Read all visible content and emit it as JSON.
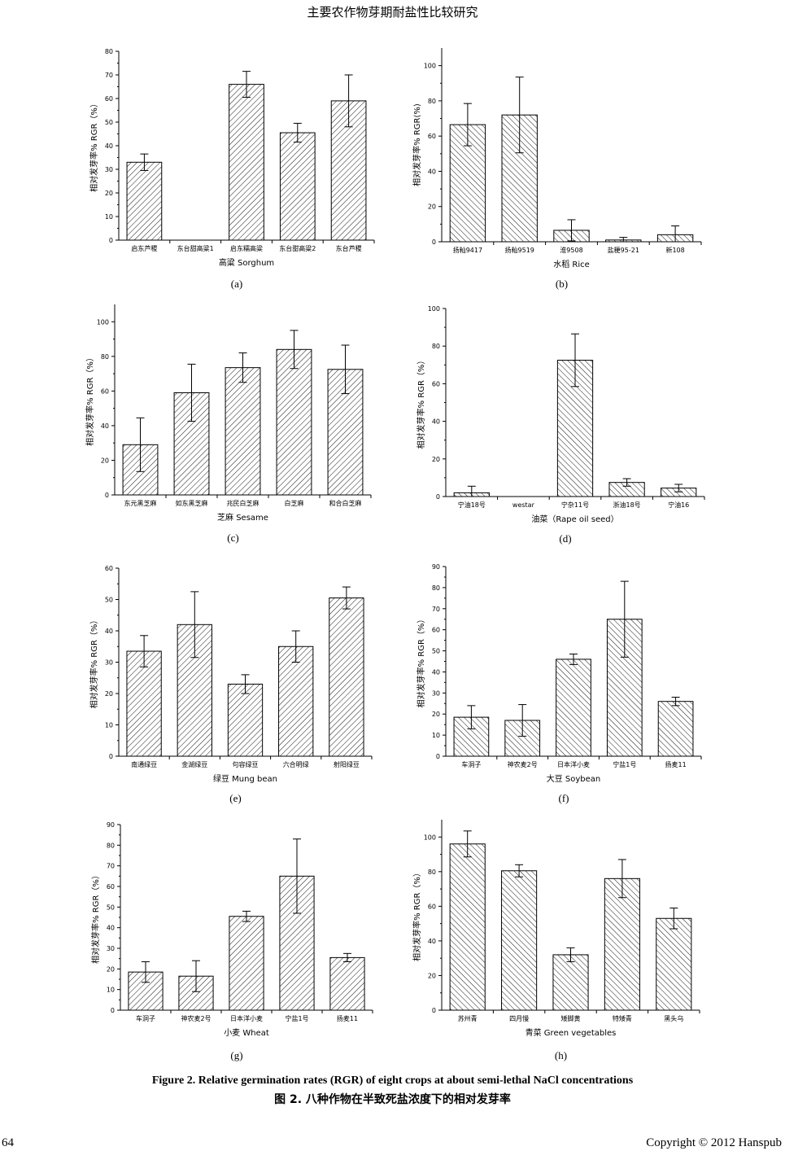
{
  "page": {
    "running_header": "主要农作物芽期耐盐性比较研究",
    "figure_caption_en": "Figure 2. Relative germination rates (RGR) of eight crops at about semi-lethal NaCl concentrations",
    "figure_caption_cn": "图 2.  八种作物在半致死盐浓度下的相对发芽率",
    "page_number": "64",
    "copyright": "Copyright © 2012 Hanspub"
  },
  "colors": {
    "bar_stroke": "#000000",
    "hatch": "#000000",
    "axis": "#000000"
  },
  "chart_data": [
    {
      "id": "a",
      "panel_label": "(a)",
      "type": "bar",
      "title": "",
      "xlabel": "高粱 Sorghum",
      "ylabel": "相对发芽率% RGR（%）",
      "ylim": [
        0,
        80
      ],
      "yticks": [
        0,
        10,
        20,
        30,
        40,
        50,
        60,
        70,
        80
      ],
      "categories": [
        "启东芦稷",
        "东台甜高粱1",
        "启东糯高粱",
        "东台甜高粱2",
        "东台芦稷"
      ],
      "values": [
        33,
        0,
        66,
        45.5,
        59
      ],
      "errors": [
        3.5,
        0,
        5.5,
        4,
        11
      ]
    },
    {
      "id": "b",
      "panel_label": "(b)",
      "type": "bar",
      "title": "",
      "xlabel": "水稻 Rice",
      "ylabel": "相对发芽率% RGR(%)",
      "ylim": [
        0,
        110
      ],
      "yticks": [
        0,
        20,
        40,
        60,
        80,
        100
      ],
      "categories": [
        "扬籼9417",
        "扬籼9519",
        "淮9508",
        "盐粳95-21",
        "新108"
      ],
      "values": [
        66.5,
        72,
        6.5,
        1,
        4
      ],
      "errors": [
        12,
        21.5,
        6,
        1.5,
        5
      ]
    },
    {
      "id": "c",
      "panel_label": "(c)",
      "type": "bar",
      "title": "",
      "xlabel": "芝麻 Sesame",
      "ylabel": "相对发芽率% RGR（%）",
      "ylim": [
        0,
        110
      ],
      "yticks": [
        0,
        20,
        40,
        60,
        80,
        100
      ],
      "categories": [
        "东元黑芝麻",
        "如东黑芝麻",
        "兆民白芝麻",
        "白芝麻",
        "和合白芝麻"
      ],
      "values": [
        29,
        59,
        73.5,
        84,
        72.5
      ],
      "errors": [
        15.5,
        16.5,
        8.5,
        11,
        14
      ]
    },
    {
      "id": "d",
      "panel_label": "(d)",
      "type": "bar",
      "title": "",
      "xlabel": "油菜（Rape oil seed）",
      "ylabel": "相对发芽率% RGR（%）",
      "ylim": [
        0,
        100
      ],
      "yticks": [
        0,
        20,
        40,
        60,
        80,
        100
      ],
      "categories": [
        "宁油18号",
        "westar",
        "宁杂11号",
        "浙油18号",
        "宁油16"
      ],
      "values": [
        2,
        0,
        72.5,
        7.5,
        4.5
      ],
      "errors": [
        3.5,
        0,
        14,
        2,
        2
      ]
    },
    {
      "id": "e",
      "panel_label": "(e)",
      "type": "bar",
      "title": "",
      "xlabel": "绿豆 Mung bean",
      "ylabel": "相对发芽率% RGR（%）",
      "ylim": [
        0,
        60
      ],
      "yticks": [
        0,
        10,
        20,
        30,
        40,
        50,
        60
      ],
      "categories": [
        "南通绿豆",
        "金湖绿豆",
        "句容绿豆",
        "六合明绿",
        "射阳绿豆"
      ],
      "values": [
        33.5,
        42,
        23,
        35,
        50.5
      ],
      "errors": [
        5,
        10.5,
        3,
        5,
        3.5
      ]
    },
    {
      "id": "f",
      "panel_label": "(f)",
      "type": "bar",
      "title": "",
      "xlabel": "大豆 Soybean",
      "ylabel": "相对发芽率% RGR（%）",
      "ylim": [
        0,
        90
      ],
      "yticks": [
        0,
        10,
        20,
        30,
        40,
        50,
        60,
        70,
        80,
        90
      ],
      "categories": [
        "车洞子",
        "神农麦2号",
        "日本洋小麦",
        "宁盐1号",
        "扬麦11"
      ],
      "values": [
        18.5,
        17,
        46,
        65,
        26
      ],
      "errors": [
        5.5,
        7.5,
        2.5,
        18,
        2
      ]
    },
    {
      "id": "g",
      "panel_label": "(g)",
      "type": "bar",
      "title": "",
      "xlabel": "小麦 Wheat",
      "ylabel": "相对发芽率% RGR（%）",
      "ylim": [
        0,
        90
      ],
      "yticks": [
        0,
        10,
        20,
        30,
        40,
        50,
        60,
        70,
        80,
        90
      ],
      "categories": [
        "车洞子",
        "神农麦2号",
        "日本洋小麦",
        "宁盐1号",
        "扬麦11"
      ],
      "values": [
        18.5,
        16.5,
        45.5,
        65,
        25.5
      ],
      "errors": [
        5,
        7.5,
        2.5,
        18,
        2
      ]
    },
    {
      "id": "h",
      "panel_label": "(h)",
      "type": "bar",
      "title": "",
      "xlabel": "青菜 Green vegetables",
      "ylabel": "相对发芽率% RGR（%）",
      "ylim": [
        0,
        110
      ],
      "yticks": [
        0,
        20,
        40,
        60,
        80,
        100
      ],
      "categories": [
        "苏州青",
        "四月慢",
        "矮脚黄",
        "特矮青",
        "黑头乌"
      ],
      "values": [
        96,
        80.5,
        32,
        76,
        53
      ],
      "errors": [
        7.5,
        3.5,
        4,
        11,
        6
      ]
    }
  ]
}
